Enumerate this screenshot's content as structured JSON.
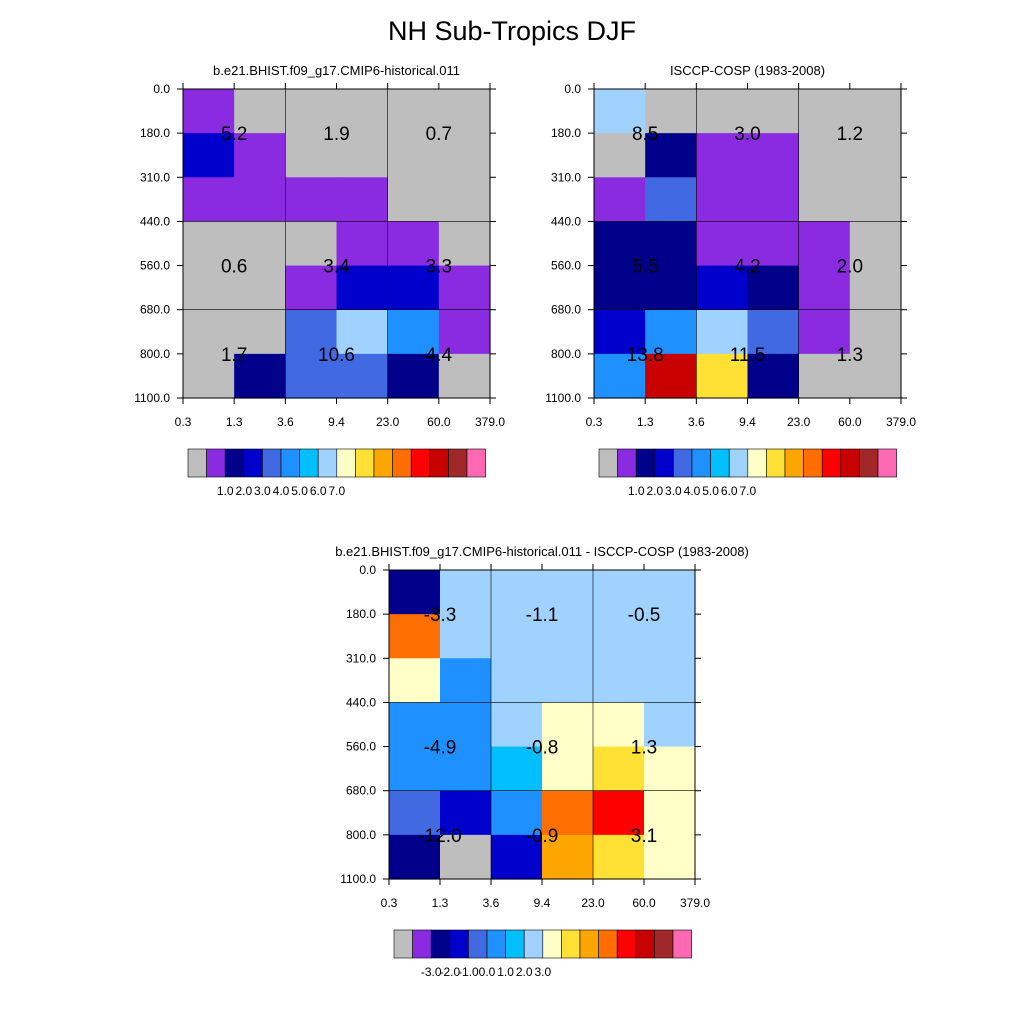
{
  "figure": {
    "title": "NH Sub-Tropics DJF"
  },
  "palette": [
    "#bebebe",
    "#8a2be2",
    "#00008b",
    "#0000cd",
    "#4169e1",
    "#1e90ff",
    "#00bfff",
    "#a0d2ff",
    "#ffffc8",
    "#ffe135",
    "#ffa500",
    "#ff6e00",
    "#ff0000",
    "#c80000",
    "#a02828",
    "#ff69b4"
  ],
  "chart_data": [
    {
      "type": "heatmap",
      "title": "b.e21.BHIST.f09_g17.CMIP6-historical.011",
      "x_ticks": [
        "0.3",
        "1.3",
        "3.6",
        "9.4",
        "23.0",
        "60.0",
        "379.0"
      ],
      "y_ticks": [
        "0.0",
        "180.0",
        "310.0",
        "440.0",
        "560.0",
        "680.0",
        "800.0",
        "1100.0"
      ],
      "cell_color_index": [
        [
          1,
          0,
          0,
          0,
          0,
          0
        ],
        [
          3,
          1,
          0,
          0,
          0,
          0
        ],
        [
          1,
          1,
          1,
          1,
          0,
          0
        ],
        [
          0,
          0,
          0,
          1,
          1,
          0
        ],
        [
          0,
          0,
          1,
          3,
          3,
          1
        ],
        [
          0,
          0,
          4,
          7,
          5,
          1
        ],
        [
          0,
          2,
          4,
          4,
          2,
          0
        ]
      ],
      "block_values": [
        [
          "5.2",
          "1.9",
          "0.7"
        ],
        [
          "0.6",
          "3.4",
          "3.3"
        ],
        [
          "1.7",
          "10.6",
          "4.4"
        ]
      ],
      "colorbar_labels": [
        "1.0",
        "2.0",
        "3.0",
        "4.0",
        "5.0",
        "6.0",
        "7.0"
      ]
    },
    {
      "type": "heatmap",
      "title": "ISCCP-COSP (1983-2008)",
      "x_ticks": [
        "0.3",
        "1.3",
        "3.6",
        "9.4",
        "23.0",
        "60.0",
        "379.0"
      ],
      "y_ticks": [
        "0.0",
        "180.0",
        "310.0",
        "440.0",
        "560.0",
        "680.0",
        "800.0",
        "1100.0"
      ],
      "cell_color_index": [
        [
          7,
          0,
          0,
          0,
          0,
          0
        ],
        [
          0,
          2,
          1,
          1,
          0,
          0
        ],
        [
          1,
          4,
          1,
          1,
          0,
          0
        ],
        [
          2,
          2,
          1,
          1,
          1,
          0
        ],
        [
          2,
          2,
          3,
          2,
          1,
          0
        ],
        [
          3,
          5,
          7,
          4,
          1,
          0
        ],
        [
          5,
          13,
          9,
          2,
          0,
          0
        ]
      ],
      "block_values": [
        [
          "8.5",
          "3.0",
          "1.2"
        ],
        [
          "5.5",
          "4.2",
          "2.0"
        ],
        [
          "13.8",
          "11.5",
          "1.3"
        ]
      ],
      "colorbar_labels": [
        "1.0",
        "2.0",
        "3.0",
        "4.0",
        "5.0",
        "6.0",
        "7.0"
      ]
    },
    {
      "type": "heatmap",
      "title": "b.e21.BHIST.f09_g17.CMIP6-historical.011 - ISCCP-COSP (1983-2008)",
      "x_ticks": [
        "0.3",
        "1.3",
        "3.6",
        "9.4",
        "23.0",
        "60.0",
        "379.0"
      ],
      "y_ticks": [
        "0.0",
        "180.0",
        "310.0",
        "440.0",
        "560.0",
        "680.0",
        "800.0",
        "1100.0"
      ],
      "cell_color_index": [
        [
          2,
          7,
          7,
          7,
          7,
          7
        ],
        [
          11,
          7,
          7,
          7,
          7,
          7
        ],
        [
          8,
          5,
          7,
          7,
          7,
          7
        ],
        [
          5,
          5,
          7,
          8,
          8,
          7
        ],
        [
          5,
          5,
          6,
          8,
          9,
          8
        ],
        [
          4,
          3,
          5,
          11,
          12,
          8
        ],
        [
          2,
          0,
          3,
          10,
          9,
          8
        ]
      ],
      "block_values": [
        [
          "-3.3",
          "-1.1",
          "-0.5"
        ],
        [
          "-4.9",
          "-0.8",
          "1.3"
        ],
        [
          "-12.0",
          "-0.9",
          "3.1"
        ]
      ],
      "colorbar_labels": [
        "-3.0",
        "-2.0",
        "-1.0",
        "0.0",
        "1.0",
        "2.0",
        "3.0"
      ]
    }
  ]
}
